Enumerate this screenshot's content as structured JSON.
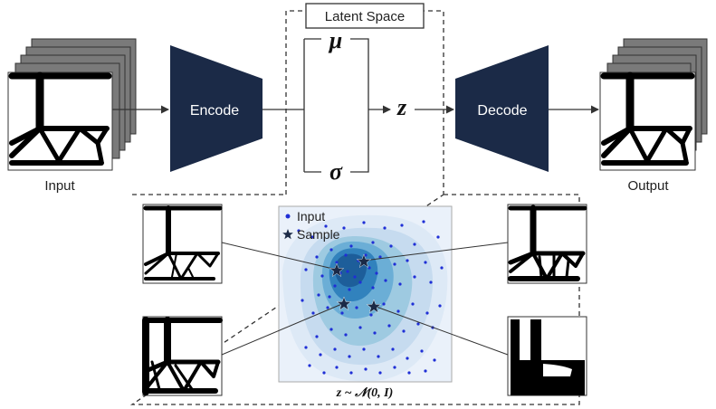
{
  "labels": {
    "latent_space": "Latent Space",
    "encode": "Encode",
    "decode": "Decode",
    "input": "Input",
    "output": "Output",
    "mu": "μ",
    "sigma": "σ",
    "z": "z",
    "sampling": "z ~ 𝒩(0, I)"
  },
  "legend": {
    "input": "Input",
    "sample": "Sample"
  },
  "colors": {
    "block": "#1b2a47",
    "point": "#1f2fd6",
    "star": "#1b2a47",
    "density_levels": [
      "#dde9f6",
      "#c6dbef",
      "#9ecae1",
      "#6baed6",
      "#3182bd",
      "#1d5e9a"
    ]
  },
  "icons": {
    "input_stack": "structure-stack-icon",
    "output_stack": "structure-stack-icon",
    "sample_marker": "star-icon"
  }
}
